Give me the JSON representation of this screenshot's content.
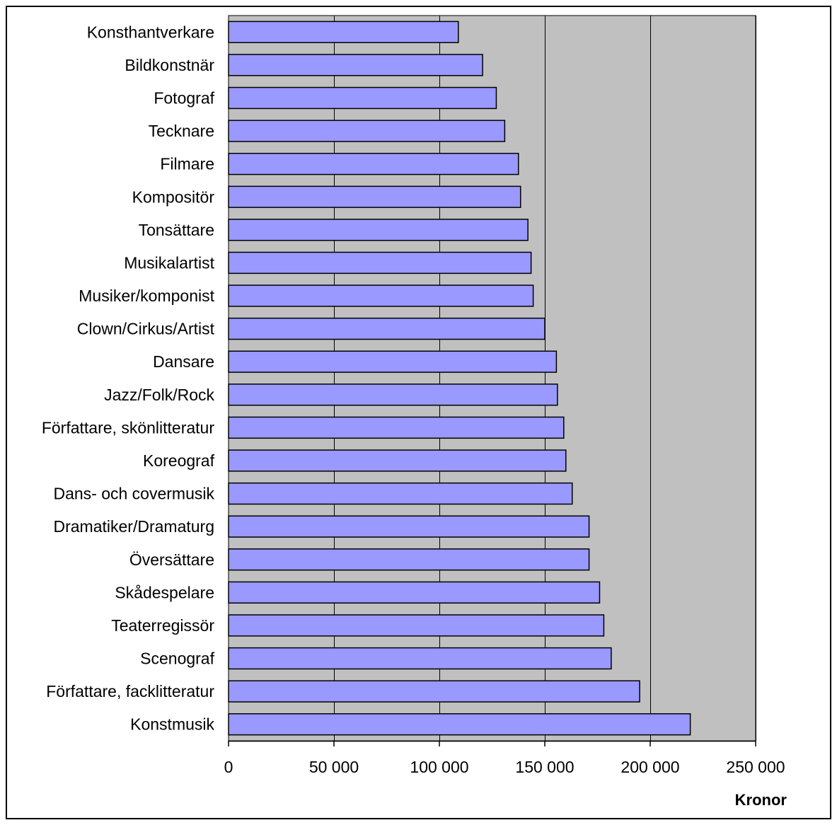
{
  "chart_data": {
    "type": "bar",
    "orientation": "horizontal",
    "categories": [
      "Konsthantverkare",
      "Bildkonstnär",
      "Fotograf",
      "Tecknare",
      "Filmare",
      "Kompositör",
      "Tonsättare",
      "Musikalartist",
      "Musiker/komponist",
      "Clown/Cirkus/Artist",
      "Dansare",
      "Jazz/Folk/Rock",
      "Författare, skönlitteratur",
      "Koreograf",
      "Dans- och covermusik",
      "Dramatiker/Dramaturg",
      "Översättare",
      "Skådespelare",
      "Teaterregissör",
      "Scenograf",
      "Författare, facklitteratur",
      "Konstmusik"
    ],
    "values": [
      109000,
      120500,
      127000,
      131000,
      137500,
      138500,
      142000,
      143500,
      144500,
      150000,
      155500,
      156000,
      159000,
      160000,
      163000,
      171000,
      171000,
      176000,
      178000,
      181500,
      195000,
      219000
    ],
    "xlim": [
      0,
      250000
    ],
    "xticks": [
      0,
      50000,
      100000,
      150000,
      200000,
      250000
    ],
    "xtick_labels": [
      "0",
      "50 000",
      "100 000",
      "150 000",
      "200 000",
      "250 000"
    ],
    "xlabel": "Kronor",
    "ylabel": "",
    "title": "",
    "grid": true,
    "legend": "none",
    "colors": {
      "bar_fill": "#9999ff",
      "bar_stroke": "#000000",
      "plot_background": "#c0c0c0",
      "gridline": "#000000"
    }
  }
}
